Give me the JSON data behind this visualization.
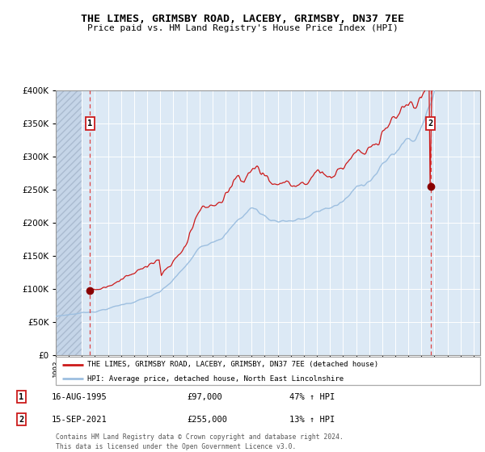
{
  "title": "THE LIMES, GRIMSBY ROAD, LACEBY, GRIMSBY, DN37 7EE",
  "subtitle": "Price paid vs. HM Land Registry's House Price Index (HPI)",
  "legend_line1": "THE LIMES, GRIMSBY ROAD, LACEBY, GRIMSBY, DN37 7EE (detached house)",
  "legend_line2": "HPI: Average price, detached house, North East Lincolnshire",
  "annotation1_date": "16-AUG-1995",
  "annotation1_price": "£97,000",
  "annotation1_hpi": "47% ↑ HPI",
  "annotation2_date": "15-SEP-2021",
  "annotation2_price": "£255,000",
  "annotation2_hpi": "13% ↑ HPI",
  "footer": "Contains HM Land Registry data © Crown copyright and database right 2024.\nThis data is licensed under the Open Government Licence v3.0.",
  "sale1_year": 1995.625,
  "sale1_price": 97000,
  "sale2_year": 2021.708,
  "sale2_price": 255000,
  "hpi_line_color": "#9dbfe0",
  "price_line_color": "#cc1a1a",
  "dot_color": "#880000",
  "annotation_box_color": "#cc1a1a",
  "dashed_line_color": "#dd4444",
  "plot_bg_color": "#dce9f5",
  "ylim": [
    0,
    400000
  ],
  "yticks": [
    0,
    50000,
    100000,
    150000,
    200000,
    250000,
    300000,
    350000,
    400000
  ],
  "xlim_start": 1993.0,
  "xlim_end": 2025.5,
  "hatch_end": 1995.0
}
